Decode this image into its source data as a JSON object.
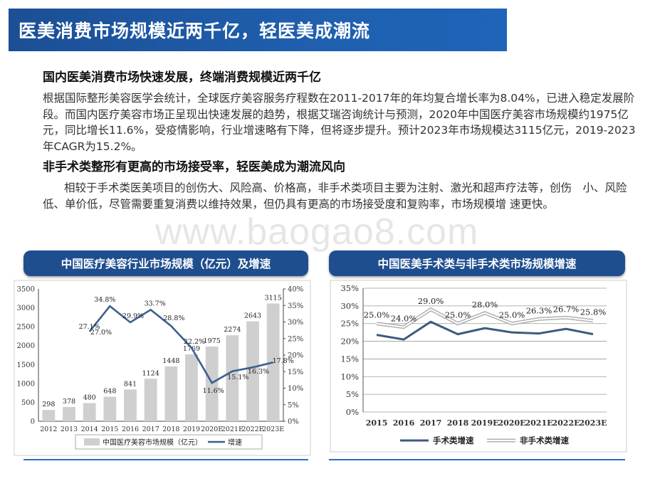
{
  "title": "医美消费市场规模近两千亿，轻医美成潮流",
  "section1": {
    "heading": "国内医美消费市场快速发展，终端消费规模近两千亿",
    "text": "根据国际整形美容医学会统计，全球医疗美容服务疗程数在2011-2017年的年均复合增长率为8.04%，已进入稳定发展阶段。而国内医疗美容市场正呈现出快速发展的趋势，根据艾瑞咨询统计与预测，2020年中国医疗美容市场规模约1975亿元，同比增长11.6%，受疫情影响，行业增速略有下降，但将逐步提升。预计2023年市场规模达3115亿元，2019-2023年CAGR为15.2%。"
  },
  "section2": {
    "heading": "非手术类整形有更高的市场接受率，轻医美成为潮流风向",
    "text": "相较于手术类医美项目的创伤大、风险高、价格高，非手术类项目主要为注射、激光和超声疗法等，创伤　小、风险低、单价低，尽管需要重复消费以维持效果，但仍具有更高的市场接受度和复购率，市场规模增 速更快。"
  },
  "watermark": "www.baogao8.com",
  "left_panel_title": "中国医疗美容行业市场规模（亿元）及增速",
  "right_panel_title": "中国医美手术类与非手术类市场规模增速",
  "chart_data": [
    {
      "type": "bar",
      "categories": [
        "2012",
        "2013",
        "2014",
        "2015",
        "2016",
        "2017",
        "2018",
        "2019",
        "2020E",
        "2021E",
        "2022E",
        "2023E"
      ],
      "series": [
        {
          "name": "中国医疗美容市场规模（亿元）",
          "type": "bar",
          "axis": "left",
          "values": [
            298,
            378,
            480,
            648,
            841,
            1124,
            1448,
            1769,
            1975,
            2274,
            2643,
            3115
          ]
        },
        {
          "name": "增速",
          "type": "line",
          "axis": "right",
          "values": [
            null,
            null,
            27.1,
            34.8,
            29.9,
            33.7,
            28.8,
            22.2,
            11.6,
            15.1,
            16.3,
            17.8
          ],
          "labels": [
            null,
            null,
            "27.1%",
            "34.8%",
            "29.9%",
            "33.7%",
            "28.8%",
            "22.2%",
            "11.6%",
            "15.1%",
            "16.3%",
            "17.8%"
          ],
          "extra_label": "27.0%"
        }
      ],
      "ylim_left": [
        0,
        3500
      ],
      "yticks_left": [
        "0",
        "500",
        "1000",
        "1500",
        "2000",
        "2500",
        "3000",
        "3500"
      ],
      "ylim_right": [
        0,
        40
      ],
      "yticks_right": [
        "0%",
        "5%",
        "10%",
        "15%",
        "20%",
        "25%",
        "30%",
        "35%",
        "40%"
      ],
      "legend_position": "bottom",
      "colors": {
        "bar": "#cfcfcf",
        "line": "#3c5f8f"
      }
    },
    {
      "type": "line",
      "categories": [
        "2015",
        "2016",
        "2017",
        "2018",
        "2019E",
        "2020E",
        "2021E",
        "2022E",
        "2023E"
      ],
      "series": [
        {
          "name": "手术类增速",
          "values": [
            21.8,
            20.5,
            25.5,
            22.0,
            23.7,
            22.5,
            22.2,
            23.5,
            22.0
          ],
          "color": "#3d5a80"
        },
        {
          "name": "非手术类增速",
          "values": [
            25.0,
            24.0,
            29.0,
            25.0,
            28.0,
            25.0,
            26.3,
            26.7,
            25.8
          ],
          "labels": [
            "25.0%",
            "24.0%",
            "29.0%",
            "25.0%",
            "28.0%",
            "25.0%",
            "26.3%",
            "26.7%",
            "25.8%"
          ],
          "color": "#c8c8c8"
        }
      ],
      "ylim": [
        0,
        35
      ],
      "yticks": [
        "0%",
        "5%",
        "10%",
        "15%",
        "20%",
        "25%",
        "30%",
        "35%"
      ],
      "legend_position": "bottom"
    }
  ]
}
